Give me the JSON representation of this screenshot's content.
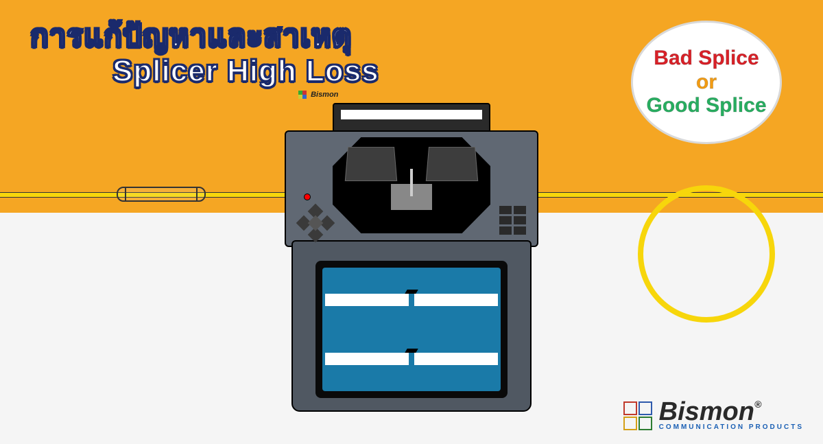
{
  "colors": {
    "bg_orange": "#f5a623",
    "bg_light": "#f5f5f5",
    "fiber_yellow": "#f7d60b",
    "screen_blue": "#1a7aa8",
    "title_fill": "#ffffff",
    "title_stroke": "#1a2a6c",
    "badge_red": "#d92027",
    "badge_orange": "#f39c12",
    "badge_green": "#27ae60",
    "brand_text": "#2a2a2a",
    "brand_sub": "#1a5fb4",
    "logo_red": "#c0392b",
    "logo_blue": "#2e5aac",
    "logo_yellow": "#d4a017",
    "logo_green": "#2e7d32"
  },
  "title": {
    "line1": "การแก้ปัญหาและสาเหตุ",
    "line2": "Splicer High Loss"
  },
  "badge": {
    "line1": "Bad Splice",
    "line2": "or",
    "line3": "Good Splice"
  },
  "device_logo": {
    "name": "Bismon",
    "sub": "COMMUNICATION PRODUCTS"
  },
  "brand": {
    "name": "Bismon",
    "reg": "®",
    "sub": "COMMUNICATION PRODUCTS"
  }
}
